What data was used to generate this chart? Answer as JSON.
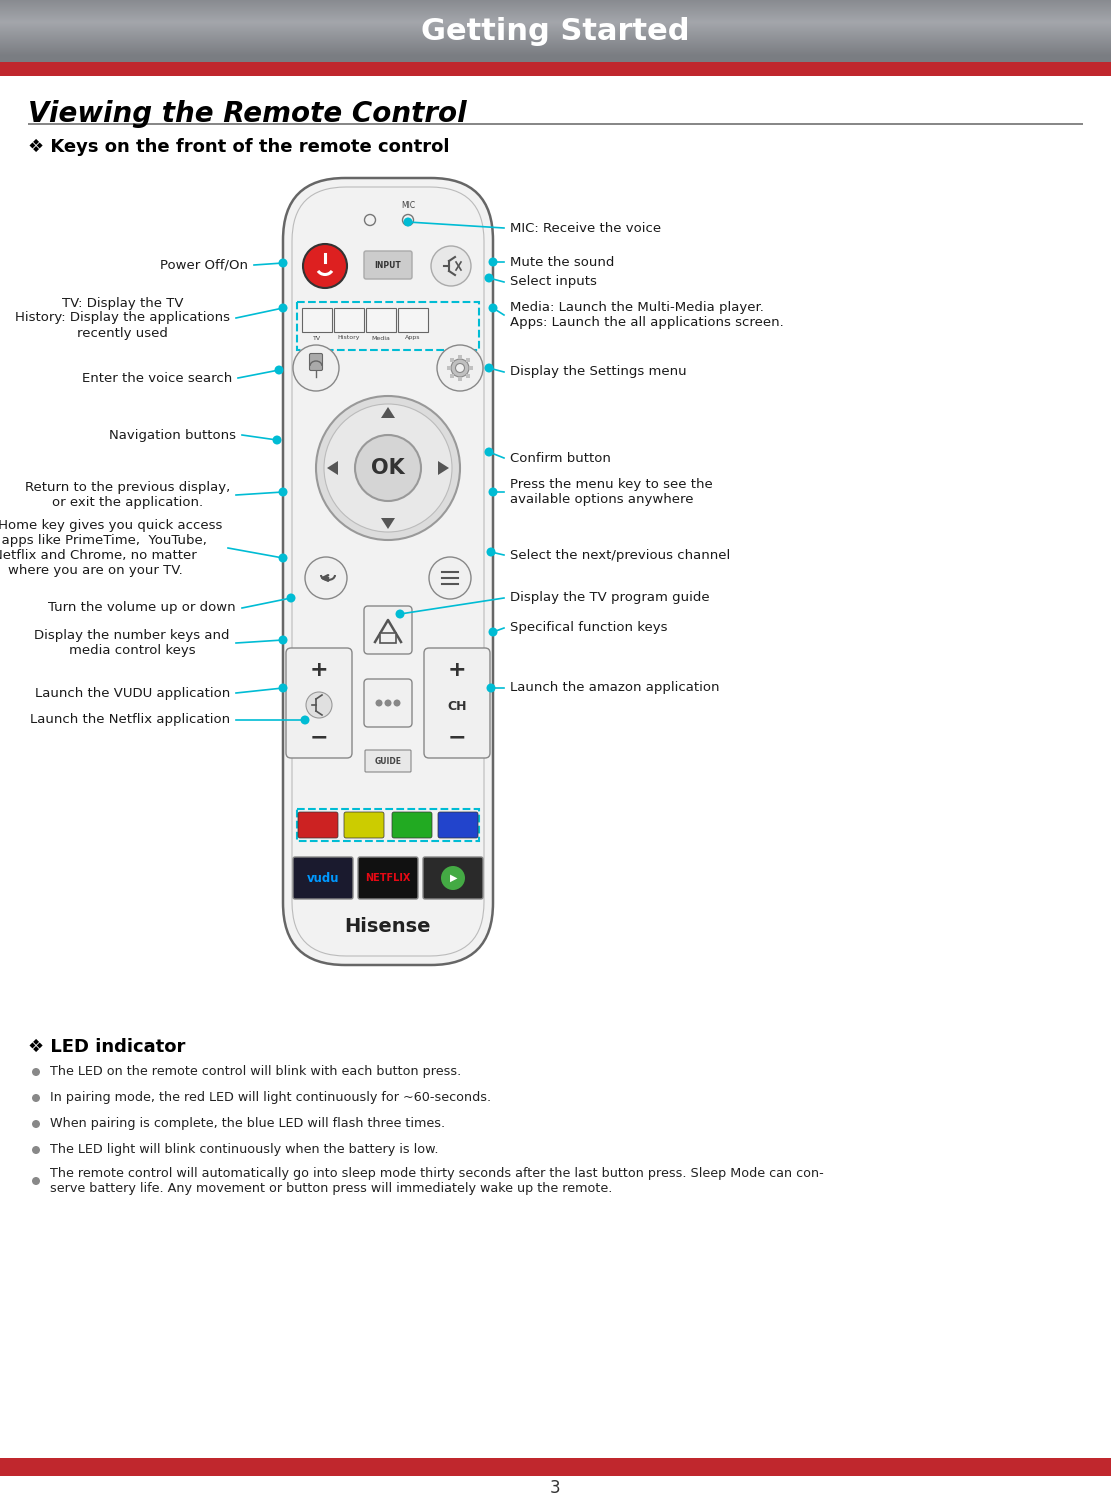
{
  "title": "Getting Started",
  "section_title": "Viewing the Remote Control",
  "subsection_title": "❖ Keys on the front of the remote control",
  "header_bg_color": "#8a9aa0",
  "header_text_color": "#ffffff",
  "red_bar_color": "#c0272d",
  "title_fontsize": 22,
  "section_title_fontsize": 20,
  "subsection_title_fontsize": 13,
  "led_title": "❖ LED indicator",
  "led_bullets": [
    "The LED on the remote control will blink with each button press.",
    "In pairing mode, the red LED will light continuously for ~60-seconds.",
    "When pairing is complete, the blue LED will flash three times.",
    "The LED light will blink continuously when the battery is low.",
    "The remote control will automatically go into sleep mode thirty seconds after the last button press. Sleep Mode can con-\nserve battery life. Any movement or button press will immediately wake up the remote."
  ],
  "page_number": "3",
  "annotation_color": "#00bcd4",
  "text_color": "#222222",
  "label_fontsize": 9.5
}
